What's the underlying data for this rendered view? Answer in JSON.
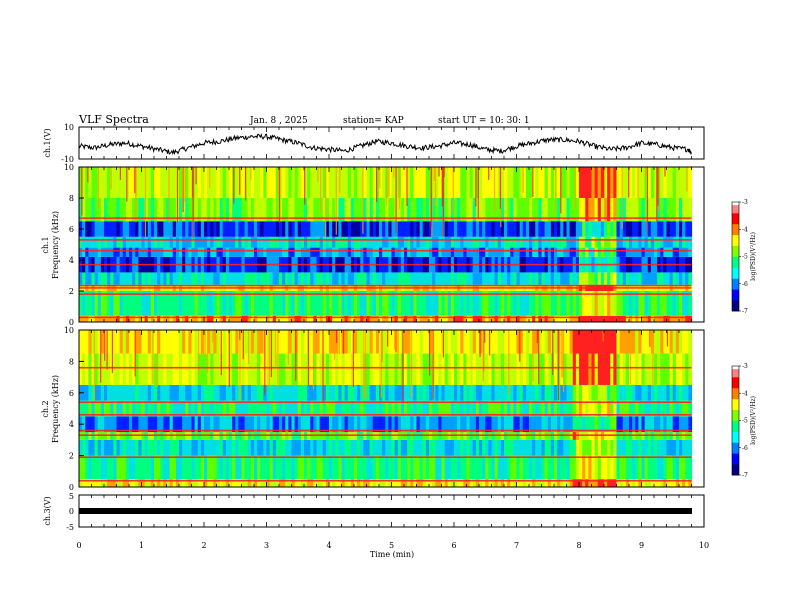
{
  "header": {
    "title": "VLF Spectra",
    "date": "Jan. 8 , 2025",
    "station": "station= KAP",
    "start": "start UT =   10: 30: 1"
  },
  "colors": {
    "palette": [
      "#0000a0",
      "#0020ff",
      "#00a0ff",
      "#00e0e0",
      "#00ff80",
      "#60ff00",
      "#c0ff00",
      "#ffff00",
      "#ffa000",
      "#ff2020"
    ]
  },
  "chart_data": [
    {
      "type": "line",
      "ylabel": "ch.1(V)",
      "ylim": [
        -10,
        10
      ],
      "y_ticks": [
        "10",
        "-10"
      ],
      "x": [
        0,
        0.25,
        0.5,
        0.75,
        1.0,
        1.25,
        1.5,
        1.75,
        2.0,
        2.25,
        2.5,
        2.75,
        3.0,
        3.25,
        3.5,
        3.75,
        4.0,
        4.25,
        4.5,
        4.75,
        5.0,
        5.25,
        5.5,
        5.75,
        6.0,
        6.25,
        6.5,
        6.75,
        7.0,
        7.25,
        7.5,
        7.75,
        8.0,
        8.25,
        8.5,
        8.75,
        9.0,
        9.25,
        9.5,
        9.75,
        9.8
      ],
      "values": [
        -2,
        -3,
        -1,
        0,
        -2,
        -4,
        -6,
        -3,
        0,
        1,
        3,
        4,
        4,
        2,
        0,
        -3,
        -4,
        -5,
        -2,
        1,
        0,
        -2,
        -3,
        -2,
        0,
        -1,
        -4,
        -5,
        -2,
        0,
        2,
        2,
        1,
        -2,
        -4,
        -3,
        0,
        -1,
        -3,
        -4,
        -6
      ]
    },
    {
      "type": "heatmap",
      "ylabel": "ch.1\nFrequency (kHz)",
      "ylim": [
        0,
        10
      ],
      "y_ticks": [
        "0",
        "2",
        "4",
        "6",
        "8",
        "10"
      ],
      "colorbar": {
        "label": "log(PSD)(V²/Hz)",
        "ticks": [
          "-3",
          "-4",
          "-5",
          "-6",
          "-7"
        ],
        "range": [
          -7,
          -3
        ]
      },
      "bands": [
        {
          "from": 0,
          "to": 0.4,
          "level": 8
        },
        {
          "from": 0.4,
          "to": 2.0,
          "level": 4
        },
        {
          "from": 2.0,
          "to": 2.4,
          "level": 7
        },
        {
          "from": 2.4,
          "to": 3.2,
          "level": 3
        },
        {
          "from": 3.2,
          "to": 4.2,
          "level": 1
        },
        {
          "from": 4.2,
          "to": 4.8,
          "level": 2
        },
        {
          "from": 4.8,
          "to": 5.5,
          "level": 3
        },
        {
          "from": 5.5,
          "to": 6.5,
          "level": 1
        },
        {
          "from": 6.5,
          "to": 8.0,
          "level": 5
        },
        {
          "from": 8.0,
          "to": 10.0,
          "level": 6
        }
      ],
      "lines_khz": [
        0.3,
        1.8,
        2.2,
        2.35,
        3.7,
        4.6,
        5.3,
        6.7
      ],
      "event": {
        "from_min": 8.0,
        "to_min": 8.6,
        "note": "bright interference bands"
      }
    },
    {
      "type": "heatmap",
      "ylabel": "ch.2\nFrequency (kHz)",
      "ylim": [
        0,
        10
      ],
      "y_ticks": [
        "0",
        "2",
        "4",
        "6",
        "8",
        "10"
      ],
      "colorbar": {
        "label": "log(PSD)(V²/Hz)",
        "ticks": [
          "-3",
          "-4",
          "-5",
          "-6",
          "-7"
        ],
        "range": [
          -7,
          -3
        ]
      },
      "bands": [
        {
          "from": 0,
          "to": 0.5,
          "level": 7
        },
        {
          "from": 0.5,
          "to": 2.0,
          "level": 4
        },
        {
          "from": 2.0,
          "to": 3.0,
          "level": 3
        },
        {
          "from": 3.0,
          "to": 3.5,
          "level": 5
        },
        {
          "from": 3.5,
          "to": 4.5,
          "level": 2
        },
        {
          "from": 4.5,
          "to": 5.5,
          "level": 4
        },
        {
          "from": 5.5,
          "to": 6.5,
          "level": 3
        },
        {
          "from": 6.5,
          "to": 8.5,
          "level": 6
        },
        {
          "from": 8.5,
          "to": 10.0,
          "level": 7
        }
      ],
      "lines_khz": [
        0.4,
        1.9,
        3.3,
        3.6,
        4.6,
        5.4,
        7.6
      ],
      "event": {
        "from_min": 7.9,
        "to_min": 8.6,
        "note": "bright interference bands"
      }
    },
    {
      "type": "line",
      "ylabel": "ch.3(V)",
      "ylim": [
        -5,
        5
      ],
      "y_ticks": [
        "5",
        "0",
        "-5"
      ],
      "values_const": 0
    }
  ],
  "x_axis": {
    "label": "Time (min)",
    "xlim": [
      0,
      10
    ],
    "ticks": [
      "0",
      "1",
      "2",
      "3",
      "4",
      "5",
      "6",
      "7",
      "8",
      "9",
      "10"
    ]
  }
}
